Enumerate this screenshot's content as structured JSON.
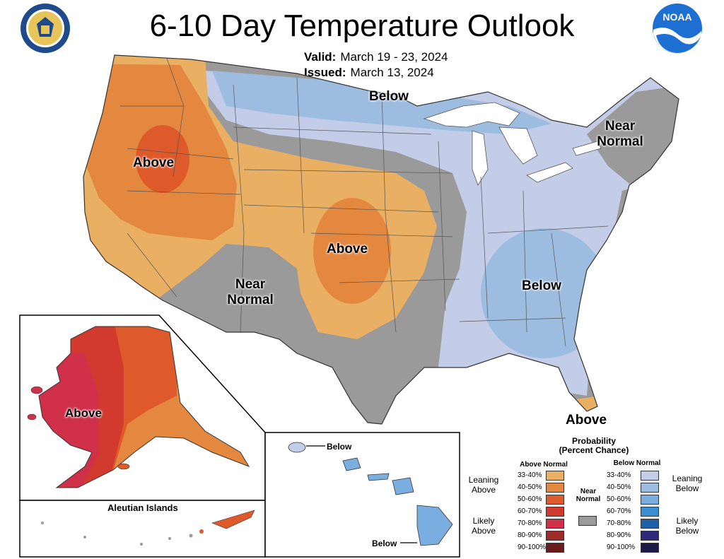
{
  "header": {
    "title": "6-10 Day Temperature Outlook",
    "valid_label": "Valid:",
    "valid_value": "March 19 - 23, 2024",
    "issued_label": "Issued:",
    "issued_value": "March 13, 2024"
  },
  "logos": {
    "left": "department-of-commerce-seal",
    "right": "noaa-logo"
  },
  "map_labels": {
    "west_above": "Above",
    "north_below": "Below",
    "northeast_near_1": "Near",
    "northeast_near_2": "Normal",
    "plains_above": "Above",
    "southwest_near_1": "Near",
    "southwest_near_2": "Normal",
    "southeast_below": "Below",
    "florida_above": "Above",
    "alaska_above": "Above",
    "aleutian_title": "Aleutian Islands",
    "hawaii_below_1": "Below",
    "hawaii_below_2": "Below"
  },
  "legend": {
    "title_1": "Probability",
    "title_2": "(Percent Chance)",
    "above_header": "Above Normal",
    "below_header": "Below Normal",
    "near_label_1": "Near",
    "near_label_2": "Normal",
    "leaning_above_1": "Leaning",
    "leaning_above_2": "Above",
    "likely_above_1": "Likely",
    "likely_above_2": "Above",
    "leaning_below_1": "Leaning",
    "leaning_below_2": "Below",
    "likely_below_1": "Likely",
    "likely_below_2": "Below",
    "above_bins": [
      {
        "range": "33-40%",
        "color": "#e9b064"
      },
      {
        "range": "40-50%",
        "color": "#e4883f"
      },
      {
        "range": "50-60%",
        "color": "#de5a2b"
      },
      {
        "range": "60-70%",
        "color": "#d33a2e"
      },
      {
        "range": "70-80%",
        "color": "#d1304a"
      },
      {
        "range": "80-90%",
        "color": "#9e2a2a"
      },
      {
        "range": "90-100%",
        "color": "#6b1c1c"
      }
    ],
    "below_bins": [
      {
        "range": "33-40%",
        "color": "#c4cde8"
      },
      {
        "range": "40-50%",
        "color": "#9dbde0"
      },
      {
        "range": "50-60%",
        "color": "#7aaee0"
      },
      {
        "range": "60-70%",
        "color": "#3a8fd3"
      },
      {
        "range": "70-80%",
        "color": "#1f5fa8"
      },
      {
        "range": "80-90%",
        "color": "#2d2a7a"
      },
      {
        "range": "90-100%",
        "color": "#1d1a4a"
      }
    ],
    "near_color": "#9a9a9a"
  },
  "colors": {
    "near_normal": "#9a9a9a",
    "above_33_40": "#e9b064",
    "above_40_50": "#e4883f",
    "above_50_60": "#de5a2b",
    "above_60_70": "#d33a2e",
    "above_70_80": "#d1304a",
    "below_33_40": "#c4cde8",
    "below_40_50": "#9dbde0",
    "below_50_60": "#7aaee0"
  }
}
